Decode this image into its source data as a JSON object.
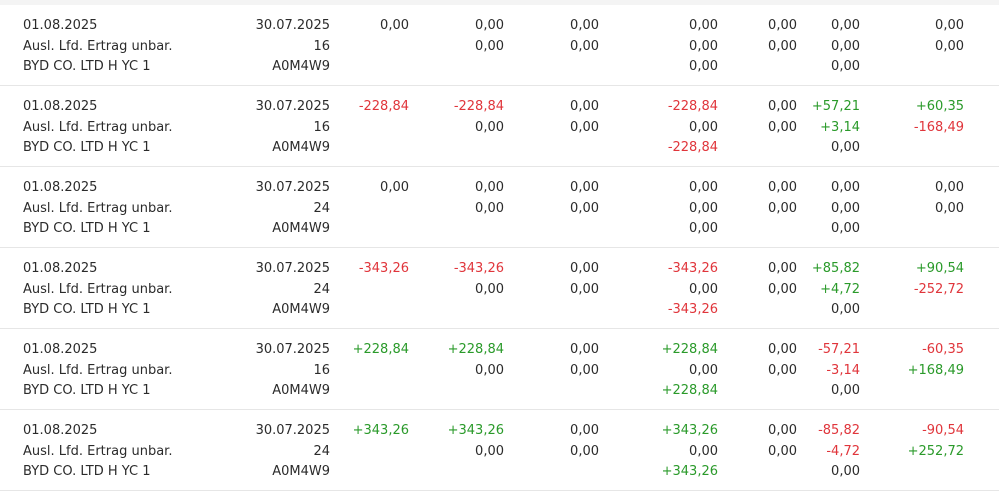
{
  "colors": {
    "negative": "#e0353b",
    "positive": "#2a9a2a",
    "neutral": "#2b2b2b"
  },
  "rows": [
    {
      "date": "01.08.2025",
      "type": "Ausl. Lfd. Ertrag unbar.",
      "security": "BYD CO. LTD H YC 1",
      "ex_date": "30.07.2025",
      "quantity": "16",
      "wkn": "A0M4W9",
      "amount": {
        "v": "0,00",
        "c": "neu"
      },
      "gross": [
        {
          "v": "0,00",
          "c": "neu"
        },
        {
          "v": "0,00",
          "c": "neu"
        }
      ],
      "col5": [
        {
          "v": "0,00",
          "c": "neu"
        },
        {
          "v": "0,00",
          "c": "neu"
        }
      ],
      "col6": [
        {
          "v": "0,00",
          "c": "neu"
        },
        {
          "v": "0,00",
          "c": "neu"
        },
        {
          "v": "0,00",
          "c": "neu"
        }
      ],
      "col7": [
        {
          "v": "0,00",
          "c": "neu"
        },
        {
          "v": "0,00",
          "c": "neu"
        }
      ],
      "col8": [
        {
          "v": "0,00",
          "c": "neu"
        },
        {
          "v": "0,00",
          "c": "neu"
        },
        {
          "v": "0,00",
          "c": "neu"
        }
      ],
      "col9": [
        {
          "v": "0,00",
          "c": "neu"
        },
        {
          "v": "0,00",
          "c": "neu"
        }
      ]
    },
    {
      "date": "01.08.2025",
      "type": "Ausl. Lfd. Ertrag unbar.",
      "security": "BYD CO. LTD H YC 1",
      "ex_date": "30.07.2025",
      "quantity": "16",
      "wkn": "A0M4W9",
      "amount": {
        "v": "-228,84",
        "c": "neg"
      },
      "gross": [
        {
          "v": "-228,84",
          "c": "neg"
        },
        {
          "v": "0,00",
          "c": "neu"
        }
      ],
      "col5": [
        {
          "v": "0,00",
          "c": "neu"
        },
        {
          "v": "0,00",
          "c": "neu"
        }
      ],
      "col6": [
        {
          "v": "-228,84",
          "c": "neg"
        },
        {
          "v": "0,00",
          "c": "neu"
        },
        {
          "v": "-228,84",
          "c": "neg"
        }
      ],
      "col7": [
        {
          "v": "0,00",
          "c": "neu"
        },
        {
          "v": "0,00",
          "c": "neu"
        }
      ],
      "col8": [
        {
          "v": "+57,21",
          "c": "pos"
        },
        {
          "v": "+3,14",
          "c": "pos"
        },
        {
          "v": "0,00",
          "c": "neu"
        }
      ],
      "col9": [
        {
          "v": "+60,35",
          "c": "pos"
        },
        {
          "v": "-168,49",
          "c": "neg"
        }
      ]
    },
    {
      "date": "01.08.2025",
      "type": "Ausl. Lfd. Ertrag unbar.",
      "security": "BYD CO. LTD H YC 1",
      "ex_date": "30.07.2025",
      "quantity": "24",
      "wkn": "A0M4W9",
      "amount": {
        "v": "0,00",
        "c": "neu"
      },
      "gross": [
        {
          "v": "0,00",
          "c": "neu"
        },
        {
          "v": "0,00",
          "c": "neu"
        }
      ],
      "col5": [
        {
          "v": "0,00",
          "c": "neu"
        },
        {
          "v": "0,00",
          "c": "neu"
        }
      ],
      "col6": [
        {
          "v": "0,00",
          "c": "neu"
        },
        {
          "v": "0,00",
          "c": "neu"
        },
        {
          "v": "0,00",
          "c": "neu"
        }
      ],
      "col7": [
        {
          "v": "0,00",
          "c": "neu"
        },
        {
          "v": "0,00",
          "c": "neu"
        }
      ],
      "col8": [
        {
          "v": "0,00",
          "c": "neu"
        },
        {
          "v": "0,00",
          "c": "neu"
        },
        {
          "v": "0,00",
          "c": "neu"
        }
      ],
      "col9": [
        {
          "v": "0,00",
          "c": "neu"
        },
        {
          "v": "0,00",
          "c": "neu"
        }
      ]
    },
    {
      "date": "01.08.2025",
      "type": "Ausl. Lfd. Ertrag unbar.",
      "security": "BYD CO. LTD H YC 1",
      "ex_date": "30.07.2025",
      "quantity": "24",
      "wkn": "A0M4W9",
      "amount": {
        "v": "-343,26",
        "c": "neg"
      },
      "gross": [
        {
          "v": "-343,26",
          "c": "neg"
        },
        {
          "v": "0,00",
          "c": "neu"
        }
      ],
      "col5": [
        {
          "v": "0,00",
          "c": "neu"
        },
        {
          "v": "0,00",
          "c": "neu"
        }
      ],
      "col6": [
        {
          "v": "-343,26",
          "c": "neg"
        },
        {
          "v": "0,00",
          "c": "neu"
        },
        {
          "v": "-343,26",
          "c": "neg"
        }
      ],
      "col7": [
        {
          "v": "0,00",
          "c": "neu"
        },
        {
          "v": "0,00",
          "c": "neu"
        }
      ],
      "col8": [
        {
          "v": "+85,82",
          "c": "pos"
        },
        {
          "v": "+4,72",
          "c": "pos"
        },
        {
          "v": "0,00",
          "c": "neu"
        }
      ],
      "col9": [
        {
          "v": "+90,54",
          "c": "pos"
        },
        {
          "v": "-252,72",
          "c": "neg"
        }
      ]
    },
    {
      "date": "01.08.2025",
      "type": "Ausl. Lfd. Ertrag unbar.",
      "security": "BYD CO. LTD H YC 1",
      "ex_date": "30.07.2025",
      "quantity": "16",
      "wkn": "A0M4W9",
      "amount": {
        "v": "+228,84",
        "c": "pos"
      },
      "gross": [
        {
          "v": "+228,84",
          "c": "pos"
        },
        {
          "v": "0,00",
          "c": "neu"
        }
      ],
      "col5": [
        {
          "v": "0,00",
          "c": "neu"
        },
        {
          "v": "0,00",
          "c": "neu"
        }
      ],
      "col6": [
        {
          "v": "+228,84",
          "c": "pos"
        },
        {
          "v": "0,00",
          "c": "neu"
        },
        {
          "v": "+228,84",
          "c": "pos"
        }
      ],
      "col7": [
        {
          "v": "0,00",
          "c": "neu"
        },
        {
          "v": "0,00",
          "c": "neu"
        }
      ],
      "col8": [
        {
          "v": "-57,21",
          "c": "neg"
        },
        {
          "v": "-3,14",
          "c": "neg"
        },
        {
          "v": "0,00",
          "c": "neu"
        }
      ],
      "col9": [
        {
          "v": "-60,35",
          "c": "neg"
        },
        {
          "v": "+168,49",
          "c": "pos"
        }
      ]
    },
    {
      "date": "01.08.2025",
      "type": "Ausl. Lfd. Ertrag unbar.",
      "security": "BYD CO. LTD H YC 1",
      "ex_date": "30.07.2025",
      "quantity": "24",
      "wkn": "A0M4W9",
      "amount": {
        "v": "+343,26",
        "c": "pos"
      },
      "gross": [
        {
          "v": "+343,26",
          "c": "pos"
        },
        {
          "v": "0,00",
          "c": "neu"
        }
      ],
      "col5": [
        {
          "v": "0,00",
          "c": "neu"
        },
        {
          "v": "0,00",
          "c": "neu"
        }
      ],
      "col6": [
        {
          "v": "+343,26",
          "c": "pos"
        },
        {
          "v": "0,00",
          "c": "neu"
        },
        {
          "v": "+343,26",
          "c": "pos"
        }
      ],
      "col7": [
        {
          "v": "0,00",
          "c": "neu"
        },
        {
          "v": "0,00",
          "c": "neu"
        }
      ],
      "col8": [
        {
          "v": "-85,82",
          "c": "neg"
        },
        {
          "v": "-4,72",
          "c": "neg"
        },
        {
          "v": "0,00",
          "c": "neu"
        }
      ],
      "col9": [
        {
          "v": "-90,54",
          "c": "neg"
        },
        {
          "v": "+252,72",
          "c": "pos"
        }
      ]
    }
  ]
}
